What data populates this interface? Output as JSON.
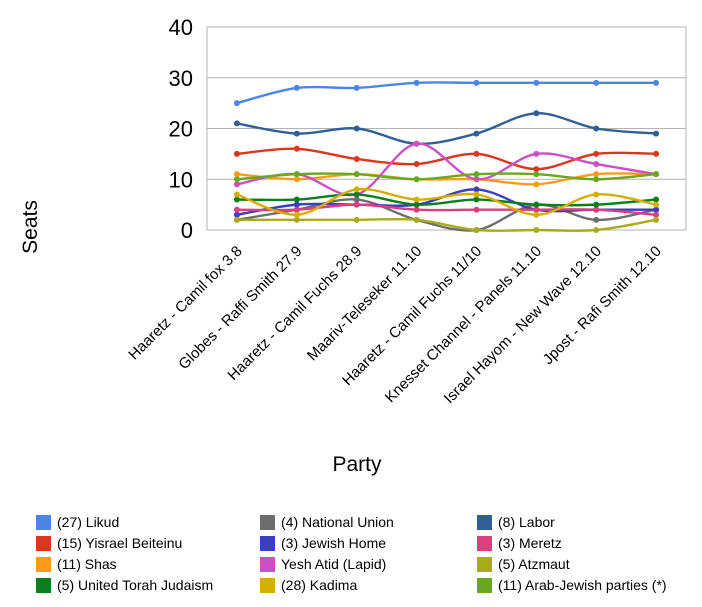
{
  "chart_data": {
    "type": "line",
    "xlabel": "Party",
    "ylabel": "Seats",
    "ylim": [
      0,
      40
    ],
    "yticks": [
      0,
      10,
      20,
      30,
      40
    ],
    "grid": "horizontal",
    "legend_position": "bottom",
    "categories": [
      "Haaretz - Camil fox 3.8",
      "Globes - Raffi Smith 27.9",
      "Haaretz - Camil Fuchs 28.9",
      "Maariv-Teleseker 11.10",
      "Haaretz - Camil Fuchs 11/10",
      "Knesset Channel - Panels 11.10",
      "Israel Hayom - New Wave 12.10",
      "Jpost - Rafi Smith 12.10"
    ],
    "series": [
      {
        "name": "(27) Likud",
        "color": "#4a86e8",
        "values": [
          25,
          28,
          28,
          29,
          29,
          29,
          29,
          29
        ]
      },
      {
        "name": "(4) National Union",
        "color": "#6d6d6d",
        "values": [
          2,
          4,
          6,
          2,
          0,
          5,
          2,
          4
        ]
      },
      {
        "name": "(8) Labor",
        "color": "#2f5f95",
        "values": [
          21,
          19,
          20,
          17,
          19,
          23,
          20,
          19
        ]
      },
      {
        "name": "(15) Yisrael Beiteinu",
        "color": "#d9381e",
        "values": [
          15,
          16,
          14,
          13,
          15,
          12,
          15,
          15
        ]
      },
      {
        "name": "(3) Jewish Home",
        "color": "#3d3dbf",
        "values": [
          3,
          5,
          5,
          5,
          8,
          4,
          4,
          4
        ]
      },
      {
        "name": "(3) Meretz",
        "color": "#dd3f7e",
        "values": [
          4,
          4,
          5,
          4,
          4,
          4,
          4,
          3
        ]
      },
      {
        "name": "(11) Shas",
        "color": "#ff9a1a",
        "values": [
          11,
          10,
          11,
          10,
          10,
          9,
          11,
          11
        ]
      },
      {
        "name": "Yesh Atid (Lapid)",
        "color": "#cc4fc4",
        "values": [
          9,
          11,
          7,
          17,
          10,
          15,
          13,
          11
        ]
      },
      {
        "name": "(5) Atzmaut",
        "color": "#a8ab1c",
        "values": [
          2,
          2,
          2,
          2,
          0,
          0,
          0,
          2
        ]
      },
      {
        "name": "(5) United Torah Judaism",
        "color": "#0d7d1d",
        "values": [
          6,
          6,
          7,
          5,
          6,
          5,
          5,
          6
        ]
      },
      {
        "name": "(28) Kadima",
        "color": "#d6ae00",
        "values": [
          7,
          3,
          8,
          6,
          7,
          3,
          7,
          5
        ]
      },
      {
        "name": "(11) Arab-Jewish parties (*)",
        "color": "#6aa81e",
        "values": [
          10,
          11,
          11,
          10,
          11,
          11,
          10,
          11
        ]
      }
    ]
  },
  "legend_order": [
    "(27) Likud",
    "(4) National Union",
    "(8) Labor",
    "(15) Yisrael Beiteinu",
    "(3) Jewish Home",
    "(3) Meretz",
    "(11) Shas",
    "Yesh Atid (Lapid)",
    "(5) Atzmaut",
    "(5) United Torah Judaism",
    "(28) Kadima",
    "(11) Arab-Jewish parties (*)"
  ]
}
